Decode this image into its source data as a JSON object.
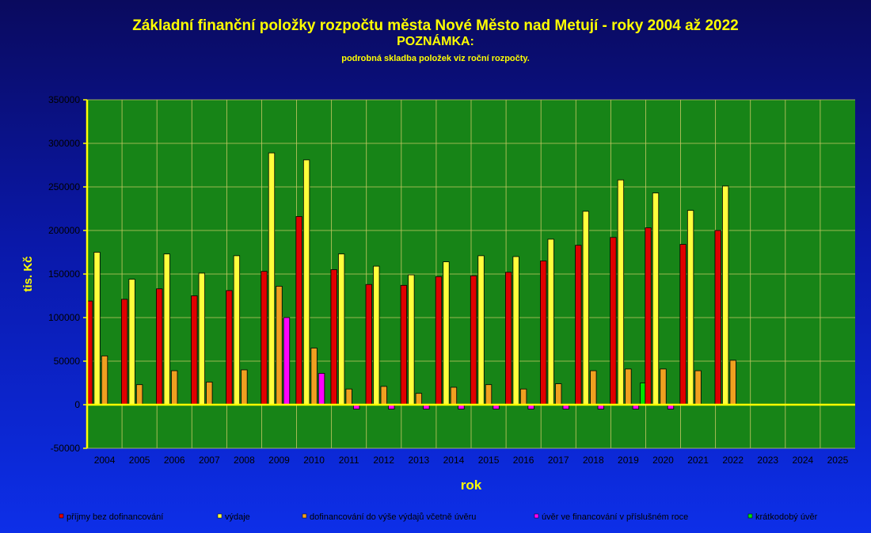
{
  "colors": {
    "plot_bg": "#178417",
    "grid": "#c8c864",
    "axis": "#ffff00",
    "label": "#ffff00",
    "tick_text": "#000000"
  },
  "chart_data": {
    "type": "bar",
    "title": "Základní finanční položky rozpočtu města Nové Město nad Metují - roky 2004 až 2022",
    "subtitle": "POZNÁMKA:",
    "note": "podrobná skladba položek viz roční rozpočty.",
    "xlabel": "rok",
    "ylabel": "tis. Kč",
    "ylim": [
      -50000,
      350000
    ],
    "yticks": [
      -50000,
      0,
      50000,
      100000,
      150000,
      200000,
      250000,
      300000,
      350000
    ],
    "grid": true,
    "legend_position": "bottom",
    "categories": [
      "2004",
      "2005",
      "2006",
      "2007",
      "2008",
      "2009",
      "2010",
      "2011",
      "2012",
      "2013",
      "2014",
      "2015",
      "2016",
      "2017",
      "2018",
      "2019",
      "2020",
      "2021",
      "2022",
      "2023",
      "2024",
      "2025"
    ],
    "series": [
      {
        "name": "příjmy bez dofinancování",
        "color": "#e00000",
        "values": [
          119000,
          121000,
          133000,
          125000,
          131000,
          153000,
          216000,
          155000,
          138000,
          137000,
          147000,
          148000,
          152000,
          165000,
          183000,
          192000,
          203000,
          184000,
          200000,
          null,
          null,
          null
        ]
      },
      {
        "name": "výdaje",
        "color": "#ffff3c",
        "values": [
          175000,
          144000,
          173000,
          151000,
          171000,
          289000,
          281000,
          173000,
          159000,
          149000,
          164000,
          171000,
          170000,
          190000,
          222000,
          258000,
          243000,
          223000,
          251000,
          null,
          null,
          null
        ]
      },
      {
        "name": "dofinancování do výše výdajů včetně úvěru",
        "color": "#f0a020",
        "values": [
          56000,
          23000,
          39000,
          26000,
          40000,
          136000,
          65000,
          18000,
          21000,
          13000,
          20000,
          23000,
          18000,
          24000,
          39000,
          41000,
          41000,
          39000,
          51000,
          null,
          null,
          null
        ]
      },
      {
        "name": "úvěr ve financování v příslušném roce",
        "color": "#ff00ff",
        "values": [
          0,
          0,
          0,
          0,
          0,
          100000,
          36000,
          -5000,
          -5000,
          -5000,
          -5000,
          -5000,
          -5000,
          -5000,
          -5000,
          -5000,
          -5000,
          0,
          0,
          null,
          null,
          null
        ]
      },
      {
        "name": "krátkodobý úvěr",
        "color": "#00e000",
        "values": [
          0,
          0,
          0,
          0,
          0,
          0,
          0,
          0,
          0,
          0,
          0,
          0,
          0,
          0,
          0,
          25000,
          0,
          0,
          0,
          null,
          null,
          null
        ]
      }
    ]
  }
}
